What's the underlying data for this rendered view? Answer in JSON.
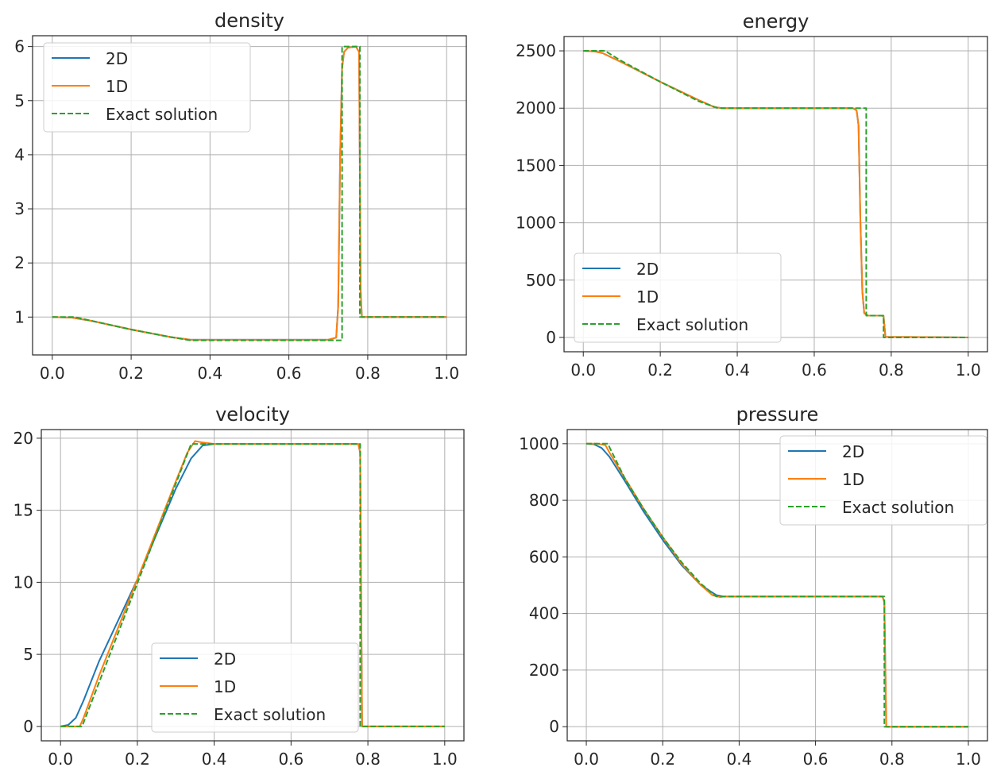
{
  "colors": {
    "series_2d": "#1f77b4",
    "series_1d": "#ff7f0e",
    "series_exact": "#2ca02c",
    "grid": "#b0b0b0",
    "axes": "#262626"
  },
  "chart_data": [
    {
      "type": "line",
      "title": "density",
      "xlabel": "",
      "ylabel": "",
      "xlim": [
        -0.05,
        1.05
      ],
      "ylim": [
        0.3,
        6.2
      ],
      "xticks": [
        0.0,
        0.2,
        0.4,
        0.6,
        0.8,
        1.0
      ],
      "xtick_labels": [
        "0.0",
        "0.2",
        "0.4",
        "0.6",
        "0.8",
        "1.0"
      ],
      "yticks": [
        1,
        2,
        3,
        4,
        5,
        6
      ],
      "ytick_labels": [
        "1",
        "2",
        "3",
        "4",
        "5",
        "6"
      ],
      "grid": true,
      "legend_position": "upper-left",
      "series": [
        {
          "name": "2D",
          "style": "solid",
          "color": "#1f77b4",
          "x": [
            0.0,
            0.05,
            0.1,
            0.2,
            0.3,
            0.35,
            0.5,
            0.7,
            0.72,
            0.725,
            0.73,
            0.735,
            0.74,
            0.75,
            0.77,
            0.778,
            0.782,
            0.785,
            1.0
          ],
          "y": [
            1.0,
            0.99,
            0.93,
            0.77,
            0.63,
            0.58,
            0.58,
            0.58,
            0.62,
            1.2,
            4.0,
            5.6,
            5.9,
            5.98,
            6.0,
            5.9,
            1.5,
            1.0,
            1.0
          ]
        },
        {
          "name": "1D",
          "style": "solid",
          "color": "#ff7f0e",
          "x": [
            0.0,
            0.05,
            0.1,
            0.2,
            0.3,
            0.35,
            0.5,
            0.7,
            0.72,
            0.725,
            0.73,
            0.735,
            0.74,
            0.75,
            0.77,
            0.778,
            0.782,
            0.785,
            1.0
          ],
          "y": [
            1.0,
            0.99,
            0.93,
            0.77,
            0.63,
            0.58,
            0.58,
            0.58,
            0.62,
            1.2,
            4.0,
            5.6,
            5.9,
            5.98,
            6.0,
            5.9,
            1.5,
            1.0,
            1.0
          ]
        },
        {
          "name": "Exact solution",
          "style": "dashed",
          "color": "#2ca02c",
          "x": [
            0.0,
            0.056,
            0.1,
            0.2,
            0.3,
            0.35,
            0.5,
            0.7,
            0.735,
            0.735,
            0.78,
            0.78,
            1.0
          ],
          "y": [
            1.0,
            1.0,
            0.93,
            0.77,
            0.63,
            0.57,
            0.57,
            0.57,
            0.57,
            6.0,
            6.0,
            1.0,
            1.0
          ]
        }
      ]
    },
    {
      "type": "line",
      "title": "energy",
      "xlabel": "",
      "ylabel": "",
      "xlim": [
        -0.05,
        1.05
      ],
      "ylim": [
        -125,
        2625
      ],
      "xticks": [
        0.0,
        0.2,
        0.4,
        0.6,
        0.8,
        1.0
      ],
      "xtick_labels": [
        "0.0",
        "0.2",
        "0.4",
        "0.6",
        "0.8",
        "1.0"
      ],
      "yticks": [
        0,
        500,
        1000,
        1500,
        2000,
        2500
      ],
      "ytick_labels": [
        "0",
        "500",
        "1000",
        "1500",
        "2000",
        "2500"
      ],
      "grid": true,
      "legend_position": "lower-left",
      "series": [
        {
          "name": "2D",
          "style": "solid",
          "color": "#1f77b4",
          "x": [
            0.0,
            0.03,
            0.05,
            0.1,
            0.2,
            0.3,
            0.34,
            0.36,
            0.5,
            0.7,
            0.71,
            0.715,
            0.72,
            0.725,
            0.73,
            0.74,
            0.775,
            0.78,
            0.785,
            1.0
          ],
          "y": [
            2500,
            2495,
            2480,
            2400,
            2230,
            2070,
            2010,
            2000,
            2000,
            2000,
            1980,
            1850,
            1000,
            400,
            210,
            190,
            190,
            185,
            5,
            0
          ]
        },
        {
          "name": "1D",
          "style": "solid",
          "color": "#ff7f0e",
          "x": [
            0.0,
            0.03,
            0.05,
            0.1,
            0.2,
            0.3,
            0.34,
            0.36,
            0.5,
            0.7,
            0.71,
            0.715,
            0.72,
            0.725,
            0.73,
            0.74,
            0.775,
            0.78,
            0.785,
            1.0
          ],
          "y": [
            2500,
            2495,
            2480,
            2400,
            2230,
            2070,
            2010,
            2000,
            2000,
            2000,
            1980,
            1850,
            1000,
            400,
            210,
            190,
            190,
            185,
            5,
            0
          ]
        },
        {
          "name": "Exact solution",
          "style": "dashed",
          "color": "#2ca02c",
          "x": [
            0.0,
            0.056,
            0.1,
            0.2,
            0.3,
            0.35,
            0.5,
            0.7,
            0.735,
            0.735,
            0.78,
            0.78,
            1.0
          ],
          "y": [
            2500,
            2500,
            2410,
            2230,
            2060,
            2000,
            2000,
            2000,
            2000,
            190,
            190,
            0,
            0
          ]
        }
      ]
    },
    {
      "type": "line",
      "title": "velocity",
      "xlabel": "",
      "ylabel": "",
      "xlim": [
        -0.05,
        1.05
      ],
      "ylim": [
        -1,
        20.6
      ],
      "xticks": [
        0.0,
        0.2,
        0.4,
        0.6,
        0.8,
        1.0
      ],
      "xtick_labels": [
        "0.0",
        "0.2",
        "0.4",
        "0.6",
        "0.8",
        "1.0"
      ],
      "yticks": [
        0,
        5,
        10,
        15,
        20
      ],
      "ytick_labels": [
        "0",
        "5",
        "10",
        "15",
        "20"
      ],
      "grid": true,
      "legend_position": "lower-center",
      "series": [
        {
          "name": "2D",
          "style": "solid",
          "color": "#1f77b4",
          "x": [
            0.0,
            0.02,
            0.04,
            0.06,
            0.1,
            0.2,
            0.3,
            0.34,
            0.37,
            0.4,
            0.6,
            0.775,
            0.78,
            0.785,
            1.0
          ],
          "y": [
            0.0,
            0.1,
            0.6,
            1.8,
            4.5,
            10.2,
            16.5,
            18.6,
            19.5,
            19.6,
            19.6,
            19.6,
            19.0,
            0.0,
            0.0
          ]
        },
        {
          "name": "1D",
          "style": "solid",
          "color": "#ff7f0e",
          "x": [
            0.0,
            0.05,
            0.06,
            0.1,
            0.2,
            0.3,
            0.33,
            0.35,
            0.37,
            0.4,
            0.6,
            0.775,
            0.78,
            0.785,
            1.0
          ],
          "y": [
            0.0,
            0.0,
            0.6,
            3.5,
            10.2,
            17.0,
            19.0,
            19.8,
            19.7,
            19.6,
            19.6,
            19.6,
            19.0,
            0.0,
            0.0
          ]
        },
        {
          "name": "Exact solution",
          "style": "dashed",
          "color": "#2ca02c",
          "x": [
            0.0,
            0.056,
            0.34,
            0.6,
            0.78,
            0.78,
            1.0
          ],
          "y": [
            0.0,
            0.0,
            19.6,
            19.6,
            19.6,
            0.0,
            0.0
          ]
        }
      ]
    },
    {
      "type": "line",
      "title": "pressure",
      "xlabel": "",
      "ylabel": "",
      "xlim": [
        -0.05,
        1.05
      ],
      "ylim": [
        -50,
        1050
      ],
      "xticks": [
        0.0,
        0.2,
        0.4,
        0.6,
        0.8,
        1.0
      ],
      "xtick_labels": [
        "0.0",
        "0.2",
        "0.4",
        "0.6",
        "0.8",
        "1.0"
      ],
      "yticks": [
        0,
        200,
        400,
        600,
        800,
        1000
      ],
      "ytick_labels": [
        "0",
        "200",
        "400",
        "600",
        "800",
        "1000"
      ],
      "grid": true,
      "legend_position": "upper-right",
      "series": [
        {
          "name": "2D",
          "style": "solid",
          "color": "#1f77b4",
          "x": [
            0.0,
            0.02,
            0.04,
            0.06,
            0.1,
            0.15,
            0.2,
            0.25,
            0.3,
            0.34,
            0.36,
            0.6,
            0.775,
            0.78,
            0.785,
            1.0
          ],
          "y": [
            1000,
            998,
            985,
            955,
            870,
            760,
            660,
            570,
            500,
            465,
            460,
            460,
            460,
            440,
            0,
            0
          ]
        },
        {
          "name": "1D",
          "style": "solid",
          "color": "#ff7f0e",
          "x": [
            0.0,
            0.03,
            0.05,
            0.06,
            0.1,
            0.15,
            0.2,
            0.25,
            0.3,
            0.33,
            0.35,
            0.36,
            0.6,
            0.775,
            0.78,
            0.785,
            1.0
          ],
          "y": [
            1000,
            1000,
            995,
            970,
            880,
            770,
            670,
            575,
            500,
            465,
            458,
            460,
            460,
            460,
            440,
            0,
            0
          ]
        },
        {
          "name": "Exact solution",
          "style": "dashed",
          "color": "#2ca02c",
          "x": [
            0.0,
            0.056,
            0.1,
            0.15,
            0.2,
            0.25,
            0.3,
            0.34,
            0.6,
            0.78,
            0.78,
            1.0
          ],
          "y": [
            1000,
            1000,
            880,
            770,
            670,
            580,
            505,
            460,
            460,
            460,
            0,
            0
          ]
        }
      ]
    }
  ]
}
